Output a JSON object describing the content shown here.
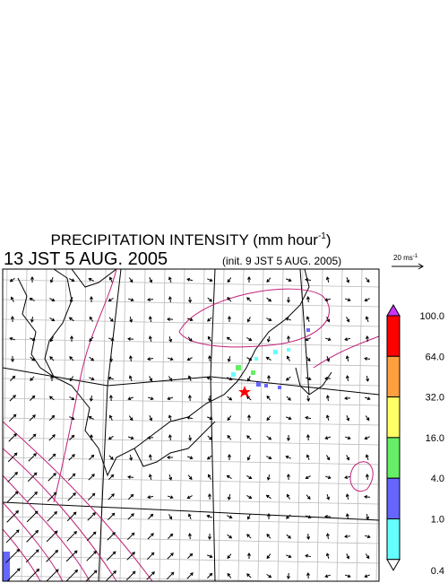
{
  "header": {
    "title": "PRECIPITATION INTENSITY (mm hour",
    "title_sup": "-1",
    "title_close": ")",
    "valid_time": "13 JST 5 AUG. 2005",
    "init_time": "(init. 9 JST 5 AUG. 2005)"
  },
  "wind_reference": {
    "label": "20 ms",
    "label_sup": "-1"
  },
  "color_scale": {
    "top_color": "#cc33ff",
    "bottom_color": "#ffffff",
    "labels": [
      "100.0",
      "64.0",
      "32.0",
      "16.0",
      "4.0",
      "1.0",
      "0.4"
    ],
    "colors": [
      "#ff0000",
      "#ffa040",
      "#ffff66",
      "#66ee66",
      "#6666ff",
      "#66ffff"
    ]
  }
}
